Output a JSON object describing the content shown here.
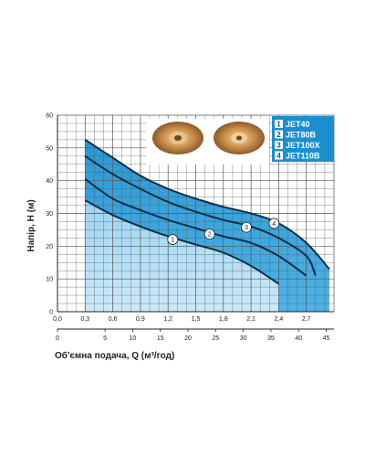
{
  "chart_data": {
    "type": "line",
    "xlabel": "Об'ємна подача, Q (м³/год)",
    "ylabel": "Напір, Н (м)",
    "x_top_ticks": [
      "0,0",
      "0,3",
      "0,6",
      "0,9",
      "1,2",
      "1,5",
      "1,8",
      "2,1",
      "2,4",
      "2,7"
    ],
    "x_bottom_ticks": [
      "0",
      "5",
      "10",
      "15",
      "20",
      "25",
      "30",
      "35",
      "40",
      "45"
    ],
    "y_ticks": [
      "0",
      "10",
      "20",
      "30",
      "40",
      "50",
      "60"
    ],
    "xlim": [
      0,
      3.0
    ],
    "ylim": [
      0,
      60
    ],
    "grid": true,
    "legend_position": "top-right",
    "series": [
      {
        "name": "JET40",
        "marker": "1",
        "color": "#0a5c86",
        "x": [
          0.3,
          0.6,
          0.9,
          1.2,
          1.5,
          1.8,
          2.1,
          2.4
        ],
        "y": [
          34,
          29.5,
          26,
          23,
          20.5,
          18,
          14,
          8.5
        ]
      },
      {
        "name": "JET80B",
        "marker": "2",
        "color": "#0a5c86",
        "x": [
          0.3,
          0.6,
          0.9,
          1.2,
          1.5,
          1.8,
          2.1,
          2.4,
          2.7
        ],
        "y": [
          40.5,
          34.5,
          31,
          28,
          25.5,
          23,
          21,
          17,
          11
        ]
      },
      {
        "name": "JET100X",
        "marker": "3",
        "color": "#0a5c86",
        "x": [
          0.3,
          0.6,
          0.9,
          1.2,
          1.5,
          1.8,
          2.1,
          2.4,
          2.7,
          2.8
        ],
        "y": [
          47.5,
          42,
          37.5,
          33.5,
          30.5,
          28,
          26,
          22.5,
          17,
          11
        ]
      },
      {
        "name": "JET110B",
        "marker": "4",
        "color": "#0a5c86",
        "x": [
          0.3,
          0.6,
          0.9,
          1.2,
          1.5,
          1.8,
          2.1,
          2.4,
          2.7,
          2.95
        ],
        "y": [
          52.5,
          47,
          41.5,
          37.5,
          34.5,
          32,
          30,
          27,
          21,
          13
        ]
      }
    ]
  }
}
